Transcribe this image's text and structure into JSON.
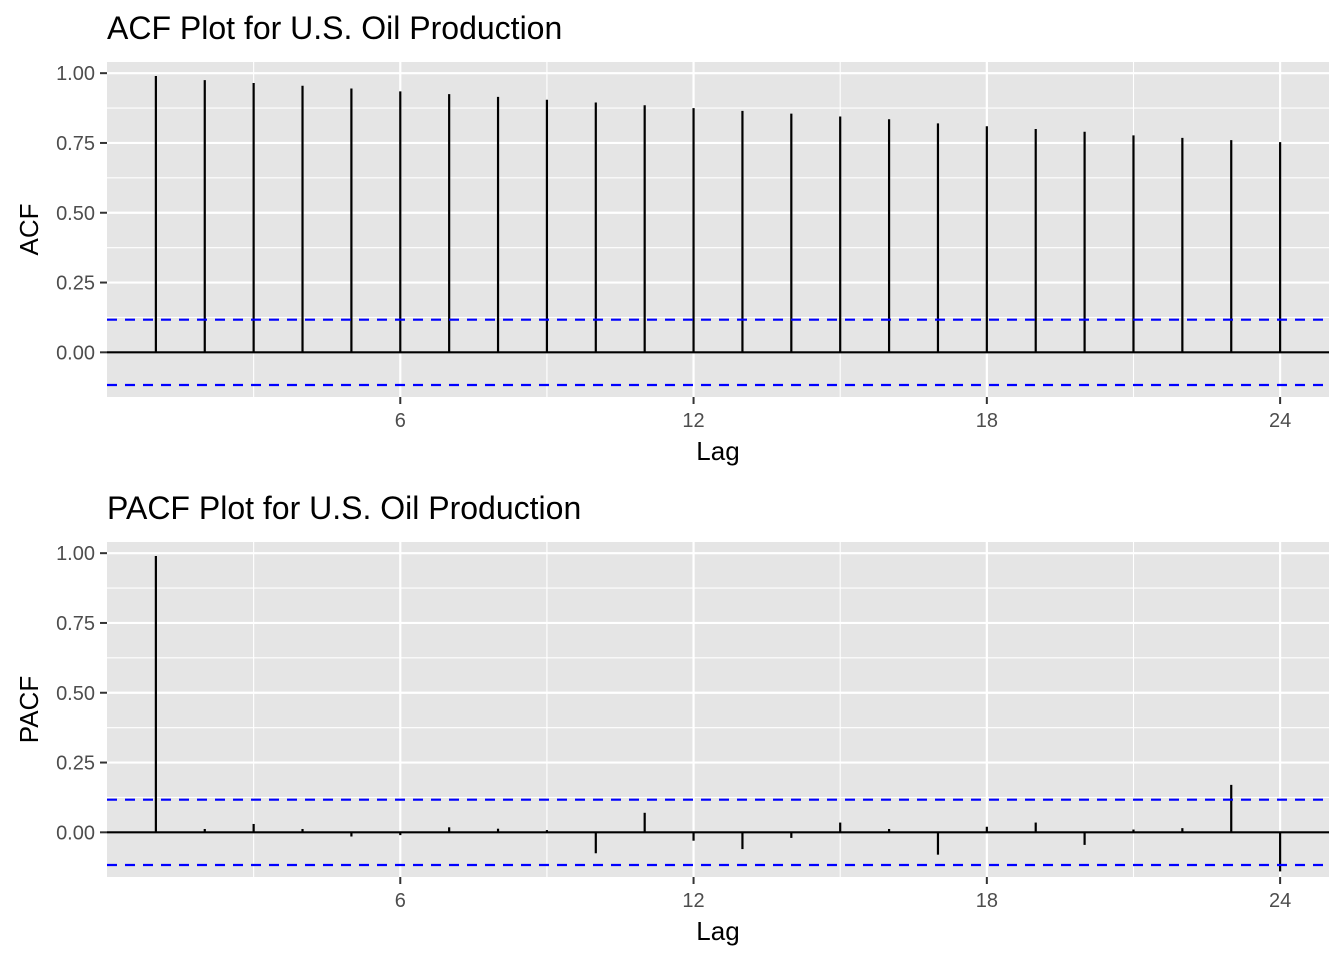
{
  "chart_data": [
    {
      "type": "acf",
      "title": "ACF Plot for U.S. Oil Production",
      "xlabel": "Lag",
      "ylabel": "ACF",
      "x_ticks": [
        "6",
        "12",
        "18",
        "24"
      ],
      "y_ticks": [
        "0.00",
        "0.25",
        "0.50",
        "0.75",
        "1.00"
      ],
      "xlim": [
        0,
        25
      ],
      "ylim": [
        -0.16,
        1.04
      ],
      "confidence_bound": 0.117,
      "lags": [
        1,
        2,
        3,
        4,
        5,
        6,
        7,
        8,
        9,
        10,
        11,
        12,
        13,
        14,
        15,
        16,
        17,
        18,
        19,
        20,
        21,
        22,
        23,
        24
      ],
      "values": [
        0.99,
        0.975,
        0.965,
        0.955,
        0.945,
        0.935,
        0.925,
        0.915,
        0.905,
        0.895,
        0.885,
        0.875,
        0.865,
        0.855,
        0.845,
        0.835,
        0.82,
        0.81,
        0.8,
        0.79,
        0.777,
        0.768,
        0.76,
        0.753
      ],
      "grid": true,
      "colors": {
        "panel": "#e5e5e5",
        "stem": "#000000",
        "confidence": "#0000ff"
      }
    },
    {
      "type": "pacf",
      "title": "PACF Plot for U.S. Oil Production",
      "xlabel": "Lag",
      "ylabel": "PACF",
      "x_ticks": [
        "6",
        "12",
        "18",
        "24"
      ],
      "y_ticks": [
        "0.00",
        "0.25",
        "0.50",
        "0.75",
        "1.00"
      ],
      "xlim": [
        0,
        25
      ],
      "ylim": [
        -0.16,
        1.04
      ],
      "confidence_bound": 0.117,
      "lags": [
        1,
        2,
        3,
        4,
        5,
        6,
        7,
        8,
        9,
        10,
        11,
        12,
        13,
        14,
        15,
        16,
        17,
        18,
        19,
        20,
        21,
        22,
        23,
        24
      ],
      "values": [
        0.99,
        0.012,
        0.03,
        0.012,
        -0.015,
        -0.01,
        0.018,
        0.013,
        0.008,
        -0.075,
        0.07,
        -0.03,
        -0.06,
        -0.02,
        0.035,
        0.012,
        -0.08,
        0.02,
        0.035,
        -0.045,
        0.01,
        0.015,
        0.17,
        -0.14
      ],
      "grid": true,
      "colors": {
        "panel": "#e5e5e5",
        "stem": "#000000",
        "confidence": "#0000ff"
      }
    }
  ]
}
